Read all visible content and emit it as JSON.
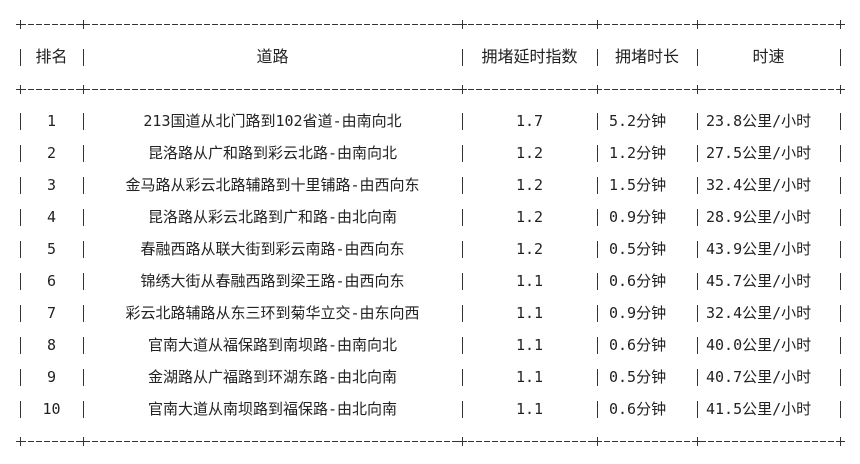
{
  "table": {
    "headers": [
      "排名",
      "道路",
      "拥堵延时指数",
      "拥堵时长",
      "时速"
    ],
    "rows": [
      [
        "1",
        "213国道从北门路到102省道-由南向北",
        "1.7",
        "5.2分钟",
        "23.8公里/小时"
      ],
      [
        "2",
        "昆洛路从广和路到彩云北路-由南向北",
        "1.2",
        "1.2分钟",
        "27.5公里/小时"
      ],
      [
        "3",
        "金马路从彩云北路辅路到十里铺路-由西向东",
        "1.2",
        "1.5分钟",
        "32.4公里/小时"
      ],
      [
        "4",
        "昆洛路从彩云北路到广和路-由北向南",
        "1.2",
        "0.9分钟",
        "28.9公里/小时"
      ],
      [
        "5",
        "春融西路从联大街到彩云南路-由西向东",
        "1.2",
        "0.5分钟",
        "43.9公里/小时"
      ],
      [
        "6",
        "锦绣大街从春融西路到梁王路-由西向东",
        "1.1",
        "0.6分钟",
        "45.7公里/小时"
      ],
      [
        "7",
        "彩云北路辅路从东三环到菊华立交-由东向西",
        "1.1",
        "0.9分钟",
        "32.4公里/小时"
      ],
      [
        "8",
        "官南大道从福保路到南坝路-由南向北",
        "1.1",
        "0.6分钟",
        "40.0公里/小时"
      ],
      [
        "9",
        "金湖路从广福路到环湖东路-由北向南",
        "1.1",
        "0.5分钟",
        "40.7公里/小时"
      ],
      [
        "10",
        "官南大道从南坝路到福保路-由北向南",
        "1.1",
        "0.6分钟",
        "41.5公里/小时"
      ]
    ]
  }
}
